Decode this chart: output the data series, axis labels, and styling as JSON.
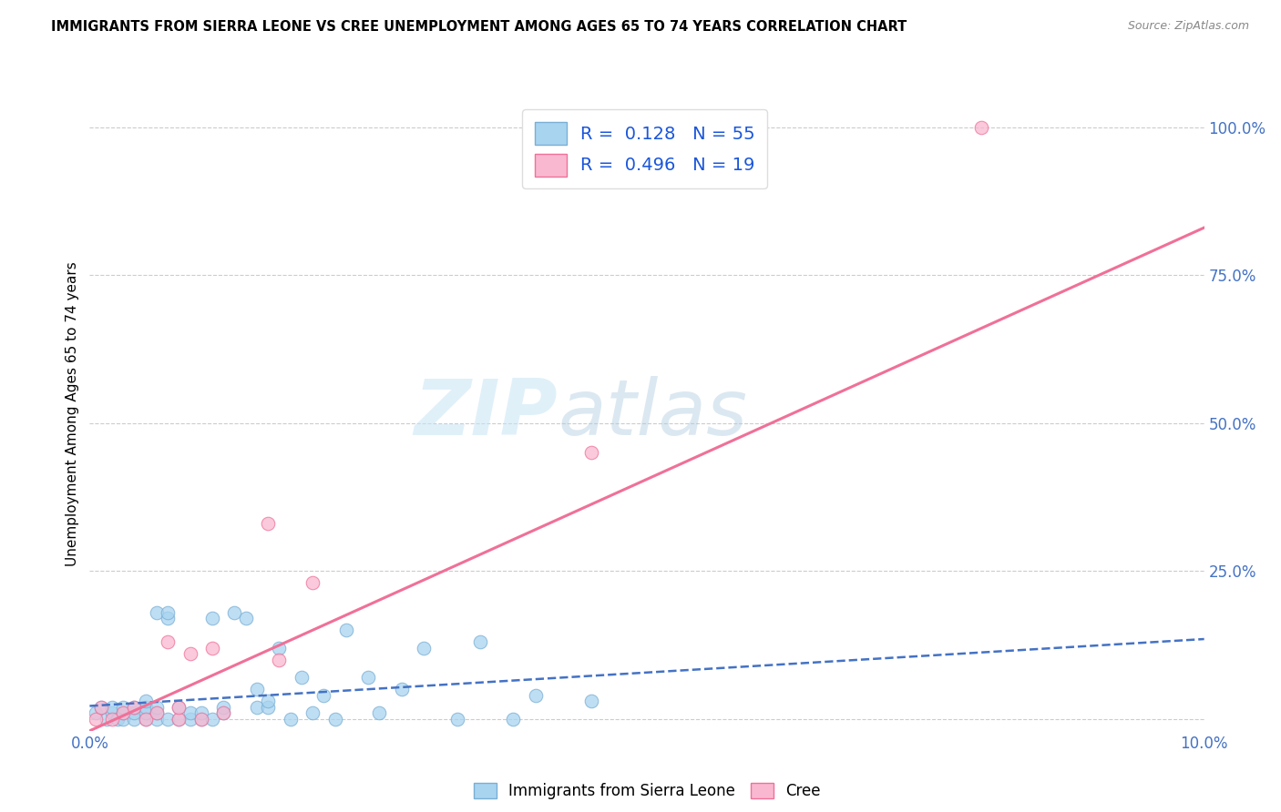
{
  "title": "IMMIGRANTS FROM SIERRA LEONE VS CREE UNEMPLOYMENT AMONG AGES 65 TO 74 YEARS CORRELATION CHART",
  "source": "Source: ZipAtlas.com",
  "ylabel": "Unemployment Among Ages 65 to 74 years",
  "xlim": [
    0.0,
    0.1
  ],
  "ylim": [
    -0.02,
    1.05
  ],
  "xticks": [
    0.0,
    0.02,
    0.04,
    0.06,
    0.08,
    0.1
  ],
  "xtick_labels": [
    "0.0%",
    "",
    "",
    "",
    "",
    "10.0%"
  ],
  "ytick_labels": [
    "100.0%",
    "75.0%",
    "50.0%",
    "25.0%",
    ""
  ],
  "yticks": [
    1.0,
    0.75,
    0.5,
    0.25,
    0.0
  ],
  "blue_color": "#A8D4F0",
  "pink_color": "#F9B8D0",
  "blue_edge_color": "#7AAFD4",
  "pink_edge_color": "#F07098",
  "blue_line_color": "#4472C4",
  "pink_line_color": "#F07098",
  "legend_text_color": "#1A56DB",
  "tick_color": "#4472C4",
  "R_blue": 0.128,
  "N_blue": 55,
  "R_pink": 0.496,
  "N_pink": 19,
  "blue_scatter_x": [
    0.0005,
    0.001,
    0.0015,
    0.002,
    0.002,
    0.0025,
    0.003,
    0.003,
    0.003,
    0.004,
    0.004,
    0.004,
    0.005,
    0.005,
    0.005,
    0.005,
    0.006,
    0.006,
    0.006,
    0.006,
    0.007,
    0.007,
    0.007,
    0.008,
    0.008,
    0.009,
    0.009,
    0.01,
    0.01,
    0.011,
    0.011,
    0.012,
    0.012,
    0.013,
    0.014,
    0.015,
    0.015,
    0.016,
    0.016,
    0.017,
    0.018,
    0.019,
    0.02,
    0.021,
    0.022,
    0.023,
    0.025,
    0.026,
    0.028,
    0.03,
    0.033,
    0.035,
    0.04,
    0.045,
    0.038
  ],
  "blue_scatter_y": [
    0.01,
    0.02,
    0.0,
    0.01,
    0.02,
    0.0,
    0.0,
    0.01,
    0.02,
    0.0,
    0.01,
    0.02,
    0.0,
    0.01,
    0.02,
    0.03,
    0.0,
    0.01,
    0.02,
    0.18,
    0.17,
    0.18,
    0.0,
    0.0,
    0.02,
    0.0,
    0.01,
    0.0,
    0.01,
    0.0,
    0.17,
    0.01,
    0.02,
    0.18,
    0.17,
    0.05,
    0.02,
    0.02,
    0.03,
    0.12,
    0.0,
    0.07,
    0.01,
    0.04,
    0.0,
    0.15,
    0.07,
    0.01,
    0.05,
    0.12,
    0.0,
    0.13,
    0.04,
    0.03,
    0.0
  ],
  "pink_scatter_x": [
    0.0005,
    0.001,
    0.002,
    0.003,
    0.004,
    0.005,
    0.006,
    0.007,
    0.008,
    0.008,
    0.009,
    0.01,
    0.011,
    0.012,
    0.016,
    0.017,
    0.02,
    0.045,
    0.08
  ],
  "pink_scatter_y": [
    0.0,
    0.02,
    0.0,
    0.01,
    0.02,
    0.0,
    0.01,
    0.13,
    0.0,
    0.02,
    0.11,
    0.0,
    0.12,
    0.01,
    0.33,
    0.1,
    0.23,
    0.45,
    1.0
  ],
  "blue_trend_x": [
    0.0,
    0.1
  ],
  "blue_trend_y": [
    0.022,
    0.135
  ],
  "pink_trend_x": [
    0.0,
    0.1
  ],
  "pink_trend_y": [
    -0.02,
    0.83
  ],
  "watermark_zip": "ZIP",
  "watermark_atlas": "atlas",
  "background_color": "#FFFFFF",
  "grid_color": "#CCCCCC"
}
